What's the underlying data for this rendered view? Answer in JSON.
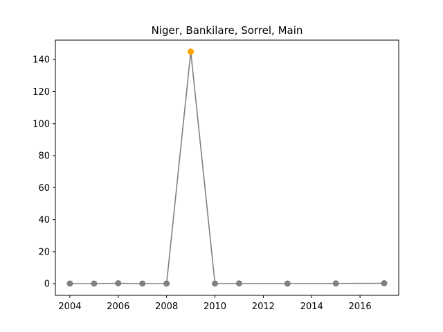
{
  "chart_data": {
    "type": "line",
    "title": "Niger, Bankilare, Sorrel, Main",
    "xlabel": "",
    "ylabel": "",
    "xlim": [
      2003.4,
      2017.6
    ],
    "ylim": [
      -7.25,
      152.2
    ],
    "x_ticks": [
      2004,
      2006,
      2008,
      2010,
      2012,
      2014,
      2016
    ],
    "y_ticks": [
      0,
      20,
      40,
      60,
      80,
      100,
      120,
      140
    ],
    "grid": false,
    "line_color": "#808080",
    "marker_color": "#808080",
    "highlight_color": "#ffa500",
    "series": [
      {
        "x": [
          2004,
          2005,
          2006,
          2007,
          2008,
          2009,
          2010,
          2011,
          2013,
          2015,
          2017
        ],
        "y": [
          0.1,
          0.1,
          0.3,
          0.1,
          0.1,
          145,
          0.1,
          0.2,
          0.1,
          0.2,
          0.3
        ],
        "highlight_index": 5
      }
    ]
  }
}
